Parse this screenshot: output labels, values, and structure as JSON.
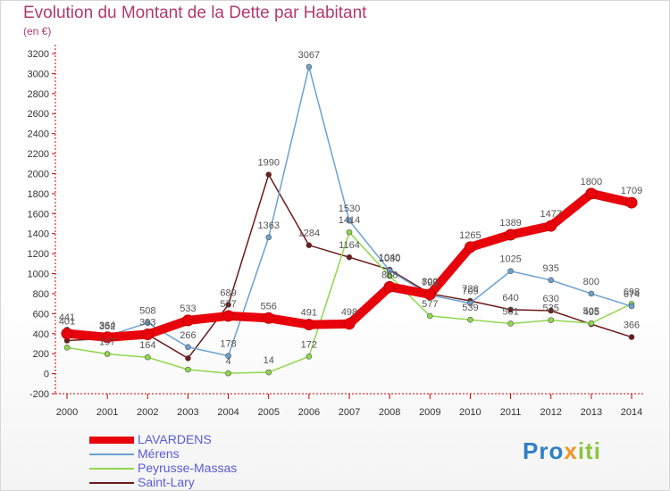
{
  "title": "Evolution du Montant de la Dette par Habitant",
  "subtitle": "(en €)",
  "logo": {
    "part1": "Pro",
    "part2": "x",
    "part3": "iti"
  },
  "chart_data": {
    "type": "line",
    "x": [
      "2000",
      "2001",
      "2002",
      "2003",
      "2004",
      "2005",
      "2006",
      "2007",
      "2008",
      "2009",
      "2010",
      "2011",
      "2012",
      "2013",
      "2014"
    ],
    "ylim": [
      -200,
      3200
    ],
    "yticks": [
      "-200",
      "0",
      "200",
      "400",
      "600",
      "800",
      "1000",
      "1200",
      "1400",
      "1600",
      "1800",
      "2000",
      "2200",
      "2400",
      "2600",
      "2800",
      "3000",
      "3200"
    ],
    "grid": false,
    "legend_position": "bottom-left",
    "series": [
      {
        "name": "LAVARDENS",
        "color": "#e8020b",
        "width": 10,
        "values": [
          401,
          364,
          393,
          533,
          577,
          556,
          491,
          498,
          868,
          792,
          1265,
          1389,
          1477,
          1800,
          1709
        ],
        "labels": [
          "401",
          "364",
          "393",
          "533",
          "577",
          "556",
          "491",
          "498",
          "868",
          "792",
          "1265",
          "1389",
          "1477",
          "1800",
          "1709"
        ]
      },
      {
        "name": "Mérens",
        "color": "#6ba1cf",
        "width": 1.5,
        "values": [
          441,
          377,
          508,
          266,
          178,
          1363,
          3067,
          1530,
          1030,
          785,
          705,
          1025,
          935,
          800,
          674
        ],
        "labels": [
          "441",
          "",
          "508",
          "266",
          "178",
          "1363",
          "3067",
          "1530",
          "1030",
          "",
          "705",
          "1025",
          "935",
          "800",
          "674"
        ]
      },
      {
        "name": "Peyrusse-Massas",
        "color": "#8ed84a",
        "width": 1.5,
        "values": [
          261,
          197,
          164,
          41,
          4,
          14,
          172,
          1414,
          977,
          577,
          539,
          501,
          535,
          505,
          698
        ],
        "labels": [
          "",
          "197",
          "164",
          "",
          "4",
          "14",
          "172",
          "1414",
          "",
          "577",
          "539",
          "501",
          "535",
          "505",
          "698"
        ]
      },
      {
        "name": "Saint-Lary",
        "color": "#6e1a1a",
        "width": 1.5,
        "values": [
          331,
          352,
          392,
          154,
          689,
          1990,
          1284,
          1164,
          1040,
          800,
          728,
          640,
          630,
          495,
          366
        ],
        "labels": [
          "",
          "352",
          "",
          "",
          "689",
          "1990",
          "1284",
          "1164",
          "1040",
          "800",
          "728",
          "640",
          "630",
          "495",
          "366"
        ]
      }
    ]
  }
}
